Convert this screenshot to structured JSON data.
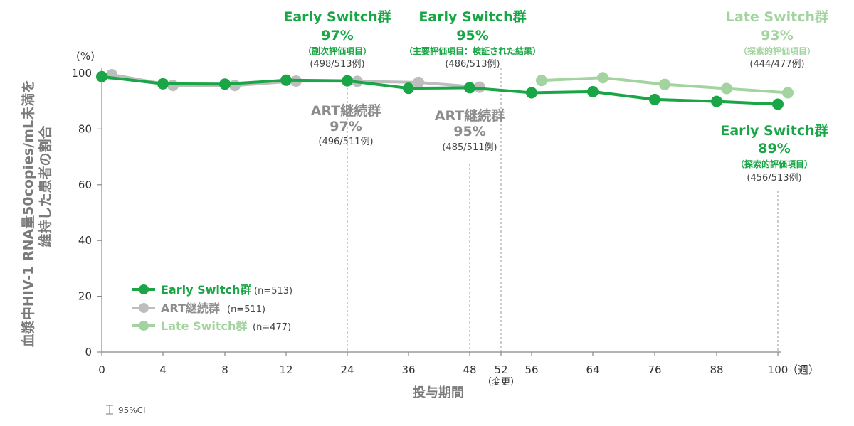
{
  "colors": {
    "early": "#1aa546",
    "art": "#bdbdbd",
    "late": "#a3d4a0",
    "axis": "#888888",
    "text_gray": "#7a7a7a",
    "text_dark": "#333333"
  },
  "chart_data": {
    "type": "line",
    "ylabel_line1": "血漿中HIV-1 RNA量50copies/mL未満を",
    "ylabel_line2": "維持した患者の割合",
    "yunit": "(%)",
    "xlabel": "投与期間",
    "xunit": "（週）",
    "switch_note": "（変更）",
    "ci_note": "95%CI",
    "ylim": [
      0,
      100
    ],
    "yticks": [
      "0",
      "20",
      "40",
      "60",
      "80",
      "100"
    ],
    "x_categories": [
      "0",
      "4",
      "8",
      "12",
      "24",
      "36",
      "48",
      "52",
      "56",
      "64",
      "76",
      "88",
      "100"
    ],
    "grid": false,
    "legend_position": "bottom-left",
    "series": [
      {
        "name": "Early Switch群",
        "n_label": "(n=513)",
        "points": [
          [
            0,
            98.8
          ],
          [
            4,
            96.2
          ],
          [
            8,
            96.1
          ],
          [
            12,
            97.5
          ],
          [
            24,
            97.3
          ],
          [
            36,
            94.6
          ],
          [
            48,
            94.8
          ],
          [
            56,
            93.0
          ],
          [
            64,
            93.4
          ],
          [
            76,
            90.6
          ],
          [
            88,
            89.9
          ],
          [
            100,
            88.9
          ]
        ]
      },
      {
        "name": "ART継続群",
        "n_label": "(n=511)",
        "points": [
          [
            0,
            99.5
          ],
          [
            4,
            95.6
          ],
          [
            8,
            95.6
          ],
          [
            12,
            97.2
          ],
          [
            24,
            97.1
          ],
          [
            36,
            96.7
          ],
          [
            48,
            95.0
          ]
        ]
      },
      {
        "name": "Late Switch群",
        "n_label": "(n=477)",
        "points": [
          [
            56,
            97.4
          ],
          [
            64,
            98.4
          ],
          [
            76,
            96.0
          ],
          [
            88,
            94.5
          ],
          [
            100,
            93.0
          ]
        ]
      }
    ],
    "annotations": {
      "early24": {
        "name": "Early Switch群",
        "pct": "97%",
        "sub": "（副次評価項目）",
        "count": "(498/513例)"
      },
      "early48": {
        "name": "Early Switch群",
        "pct": "95%",
        "sub": "（主要評価項目：検証された結果）",
        "count": "(486/513例)"
      },
      "late100": {
        "name": "Late Switch群",
        "pct": "93%",
        "sub": "（探索的評価項目）",
        "count": "(444/477例)"
      },
      "art24": {
        "name": "ART継続群",
        "pct": "97%",
        "count": "(496/511例)"
      },
      "art48": {
        "name": "ART継続群",
        "pct": "95%",
        "count": "(485/511例)"
      },
      "early100": {
        "name": "Early Switch群",
        "pct": "89%",
        "sub": "（探索的評価項目）",
        "count": "(456/513例)"
      }
    }
  }
}
